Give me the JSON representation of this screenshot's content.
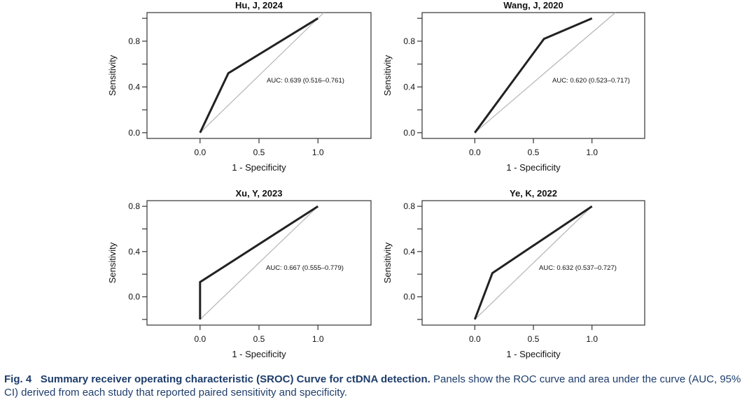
{
  "chart_data": [
    {
      "type": "line",
      "title": "Hu, J, 2024",
      "xlabel": "1 - Specificity",
      "ylabel": "Sensitivity",
      "xlim": [
        -0.45,
        1.45
      ],
      "ylim": [
        -0.05,
        1.05
      ],
      "x_ticks": [
        0.0,
        0.5,
        1.0
      ],
      "x_tick_labels": [
        "0.0",
        "0.5",
        "1.0"
      ],
      "y_ticks": [
        0.0,
        0.2,
        0.4,
        0.6,
        0.8,
        1.0
      ],
      "y_tick_labels": [
        "0.0",
        "",
        "0.4",
        "",
        "0.8",
        ""
      ],
      "grid": false,
      "series": [
        {
          "name": "ROC curve",
          "x": [
            0.0,
            0.24,
            1.0
          ],
          "y": [
            0.0,
            0.52,
            1.0
          ]
        },
        {
          "name": "reference",
          "x": [
            0.0,
            1.05
          ],
          "y": [
            0.0,
            1.05
          ]
        }
      ],
      "annotation": "AUC: 0.639 (0.516–0.761)"
    },
    {
      "type": "line",
      "title": "Wang, J, 2020",
      "xlabel": "1 - Specificity",
      "ylabel": "Sensitivity",
      "xlim": [
        -0.45,
        1.45
      ],
      "ylim": [
        -0.05,
        1.05
      ],
      "x_ticks": [
        0.0,
        0.5,
        1.0
      ],
      "x_tick_labels": [
        "0.0",
        "0.5",
        "1.0"
      ],
      "y_ticks": [
        0.0,
        0.2,
        0.4,
        0.6,
        0.8,
        1.0
      ],
      "y_tick_labels": [
        "0.0",
        "",
        "0.4",
        "",
        "0.8",
        ""
      ],
      "grid": false,
      "series": [
        {
          "name": "ROC curve",
          "x": [
            0.0,
            0.59,
            1.0
          ],
          "y": [
            0.0,
            0.82,
            1.0
          ]
        },
        {
          "name": "reference",
          "x": [
            0.0,
            1.2
          ],
          "y": [
            0.0,
            1.05
          ]
        }
      ],
      "annotation": "AUC: 0.620 (0.523–0.717)"
    },
    {
      "type": "line",
      "title": "Xu, Y, 2023",
      "xlabel": "1 - Specificity",
      "ylabel": "Sensitivity",
      "xlim": [
        -0.45,
        1.45
      ],
      "ylim": [
        -0.25,
        0.85
      ],
      "x_ticks": [
        0.0,
        0.5,
        1.0
      ],
      "x_tick_labels": [
        "0.0",
        "0.5",
        "1.0"
      ],
      "y_ticks": [
        -0.2,
        0.0,
        0.2,
        0.4,
        0.6,
        0.8
      ],
      "y_tick_labels": [
        "",
        "0.0",
        "",
        "0.4",
        "",
        "0.8"
      ],
      "grid": false,
      "series": [
        {
          "name": "ROC curve",
          "x": [
            0.0,
            0.0,
            1.0
          ],
          "y": [
            -0.2,
            0.13,
            0.8
          ]
        },
        {
          "name": "reference",
          "x": [
            0.0,
            1.0
          ],
          "y": [
            -0.2,
            0.8
          ]
        }
      ],
      "annotation": "AUC: 0.667 (0.555–0.779)"
    },
    {
      "type": "line",
      "title": "Ye, K, 2022",
      "xlabel": "1 - Specificity",
      "ylabel": "Sensitivity",
      "xlim": [
        -0.45,
        1.45
      ],
      "ylim": [
        -0.25,
        0.85
      ],
      "x_ticks": [
        0.0,
        0.5,
        1.0
      ],
      "x_tick_labels": [
        "0.0",
        "0.5",
        "1.0"
      ],
      "y_ticks": [
        -0.2,
        0.0,
        0.2,
        0.4,
        0.6,
        0.8
      ],
      "y_tick_labels": [
        "",
        "0.0",
        "",
        "0.4",
        "",
        "0.8"
      ],
      "grid": false,
      "series": [
        {
          "name": "ROC curve",
          "x": [
            0.0,
            0.15,
            1.0
          ],
          "y": [
            -0.2,
            0.21,
            0.8
          ]
        },
        {
          "name": "reference",
          "x": [
            0.0,
            1.0
          ],
          "y": [
            -0.2,
            0.8
          ]
        }
      ],
      "annotation": "AUC: 0.632 (0.537–0.727)"
    }
  ],
  "caption": {
    "label": "Fig. 4",
    "title": "Summary receiver operating characteristic (SROC) Curve for ctDNA detection.",
    "text": "Panels show the ROC curve and area under the curve (AUC, 95% CI) derived from each study that reported paired sensitivity and specificity."
  },
  "colors": {
    "roc_line": "#222222",
    "reference_line": "#b5b5b5",
    "axis": "#333333",
    "caption": "#1e3d6b"
  }
}
